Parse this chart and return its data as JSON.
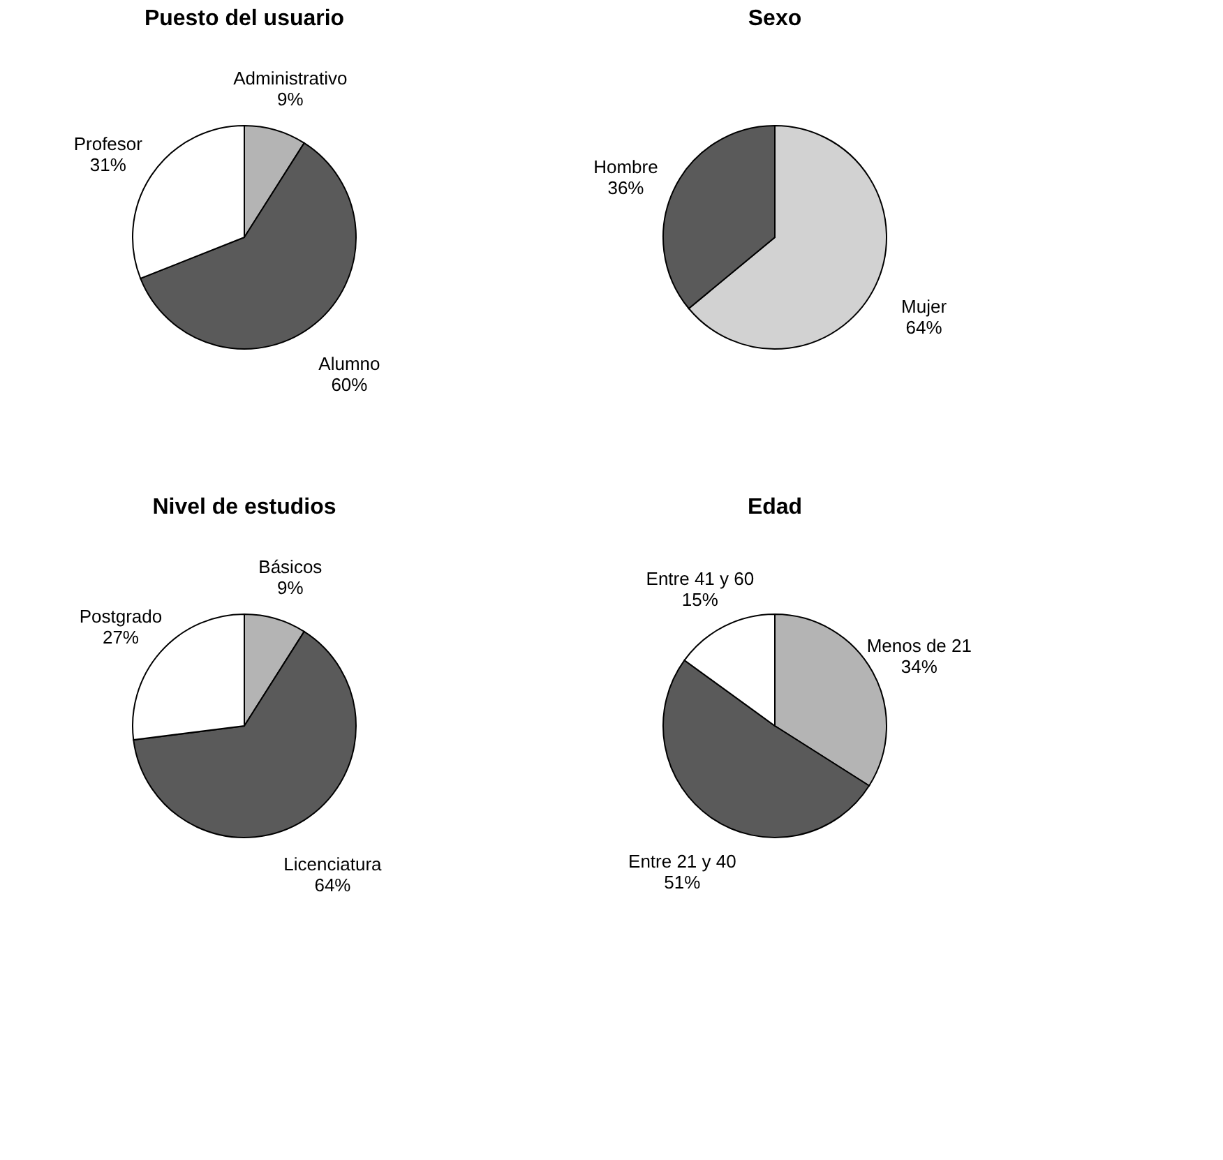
{
  "chart_data": [
    {
      "type": "pie",
      "title": "Puesto del usuario",
      "categories": [
        "Administrativo",
        "Alumno",
        "Profesor"
      ],
      "values": [
        9,
        60,
        31
      ],
      "value_labels": [
        "9%",
        "60%",
        "31%"
      ],
      "colors": [
        "#b4b4b4",
        "#5a5a5a",
        "#ffffff"
      ]
    },
    {
      "type": "pie",
      "title": "Sexo",
      "categories": [
        "Mujer",
        "Hombre"
      ],
      "values": [
        64,
        36
      ],
      "value_labels": [
        "64%",
        "36%"
      ],
      "colors": [
        "#d2d2d2",
        "#5a5a5a"
      ]
    },
    {
      "type": "pie",
      "title": "Nivel de estudios",
      "categories": [
        "Básicos",
        "Licenciatura",
        "Postgrado"
      ],
      "values": [
        9,
        64,
        27
      ],
      "value_labels": [
        "9%",
        "64%",
        "27%"
      ],
      "colors": [
        "#b4b4b4",
        "#5a5a5a",
        "#ffffff"
      ]
    },
    {
      "type": "pie",
      "title": "Edad",
      "categories": [
        "Menos de 21",
        "Entre 21 y 40",
        "Entre 41 y 60"
      ],
      "values": [
        34,
        51,
        15
      ],
      "value_labels": [
        "34%",
        "51%",
        "15%"
      ],
      "colors": [
        "#b4b4b4",
        "#5a5a5a",
        "#ffffff"
      ]
    }
  ]
}
